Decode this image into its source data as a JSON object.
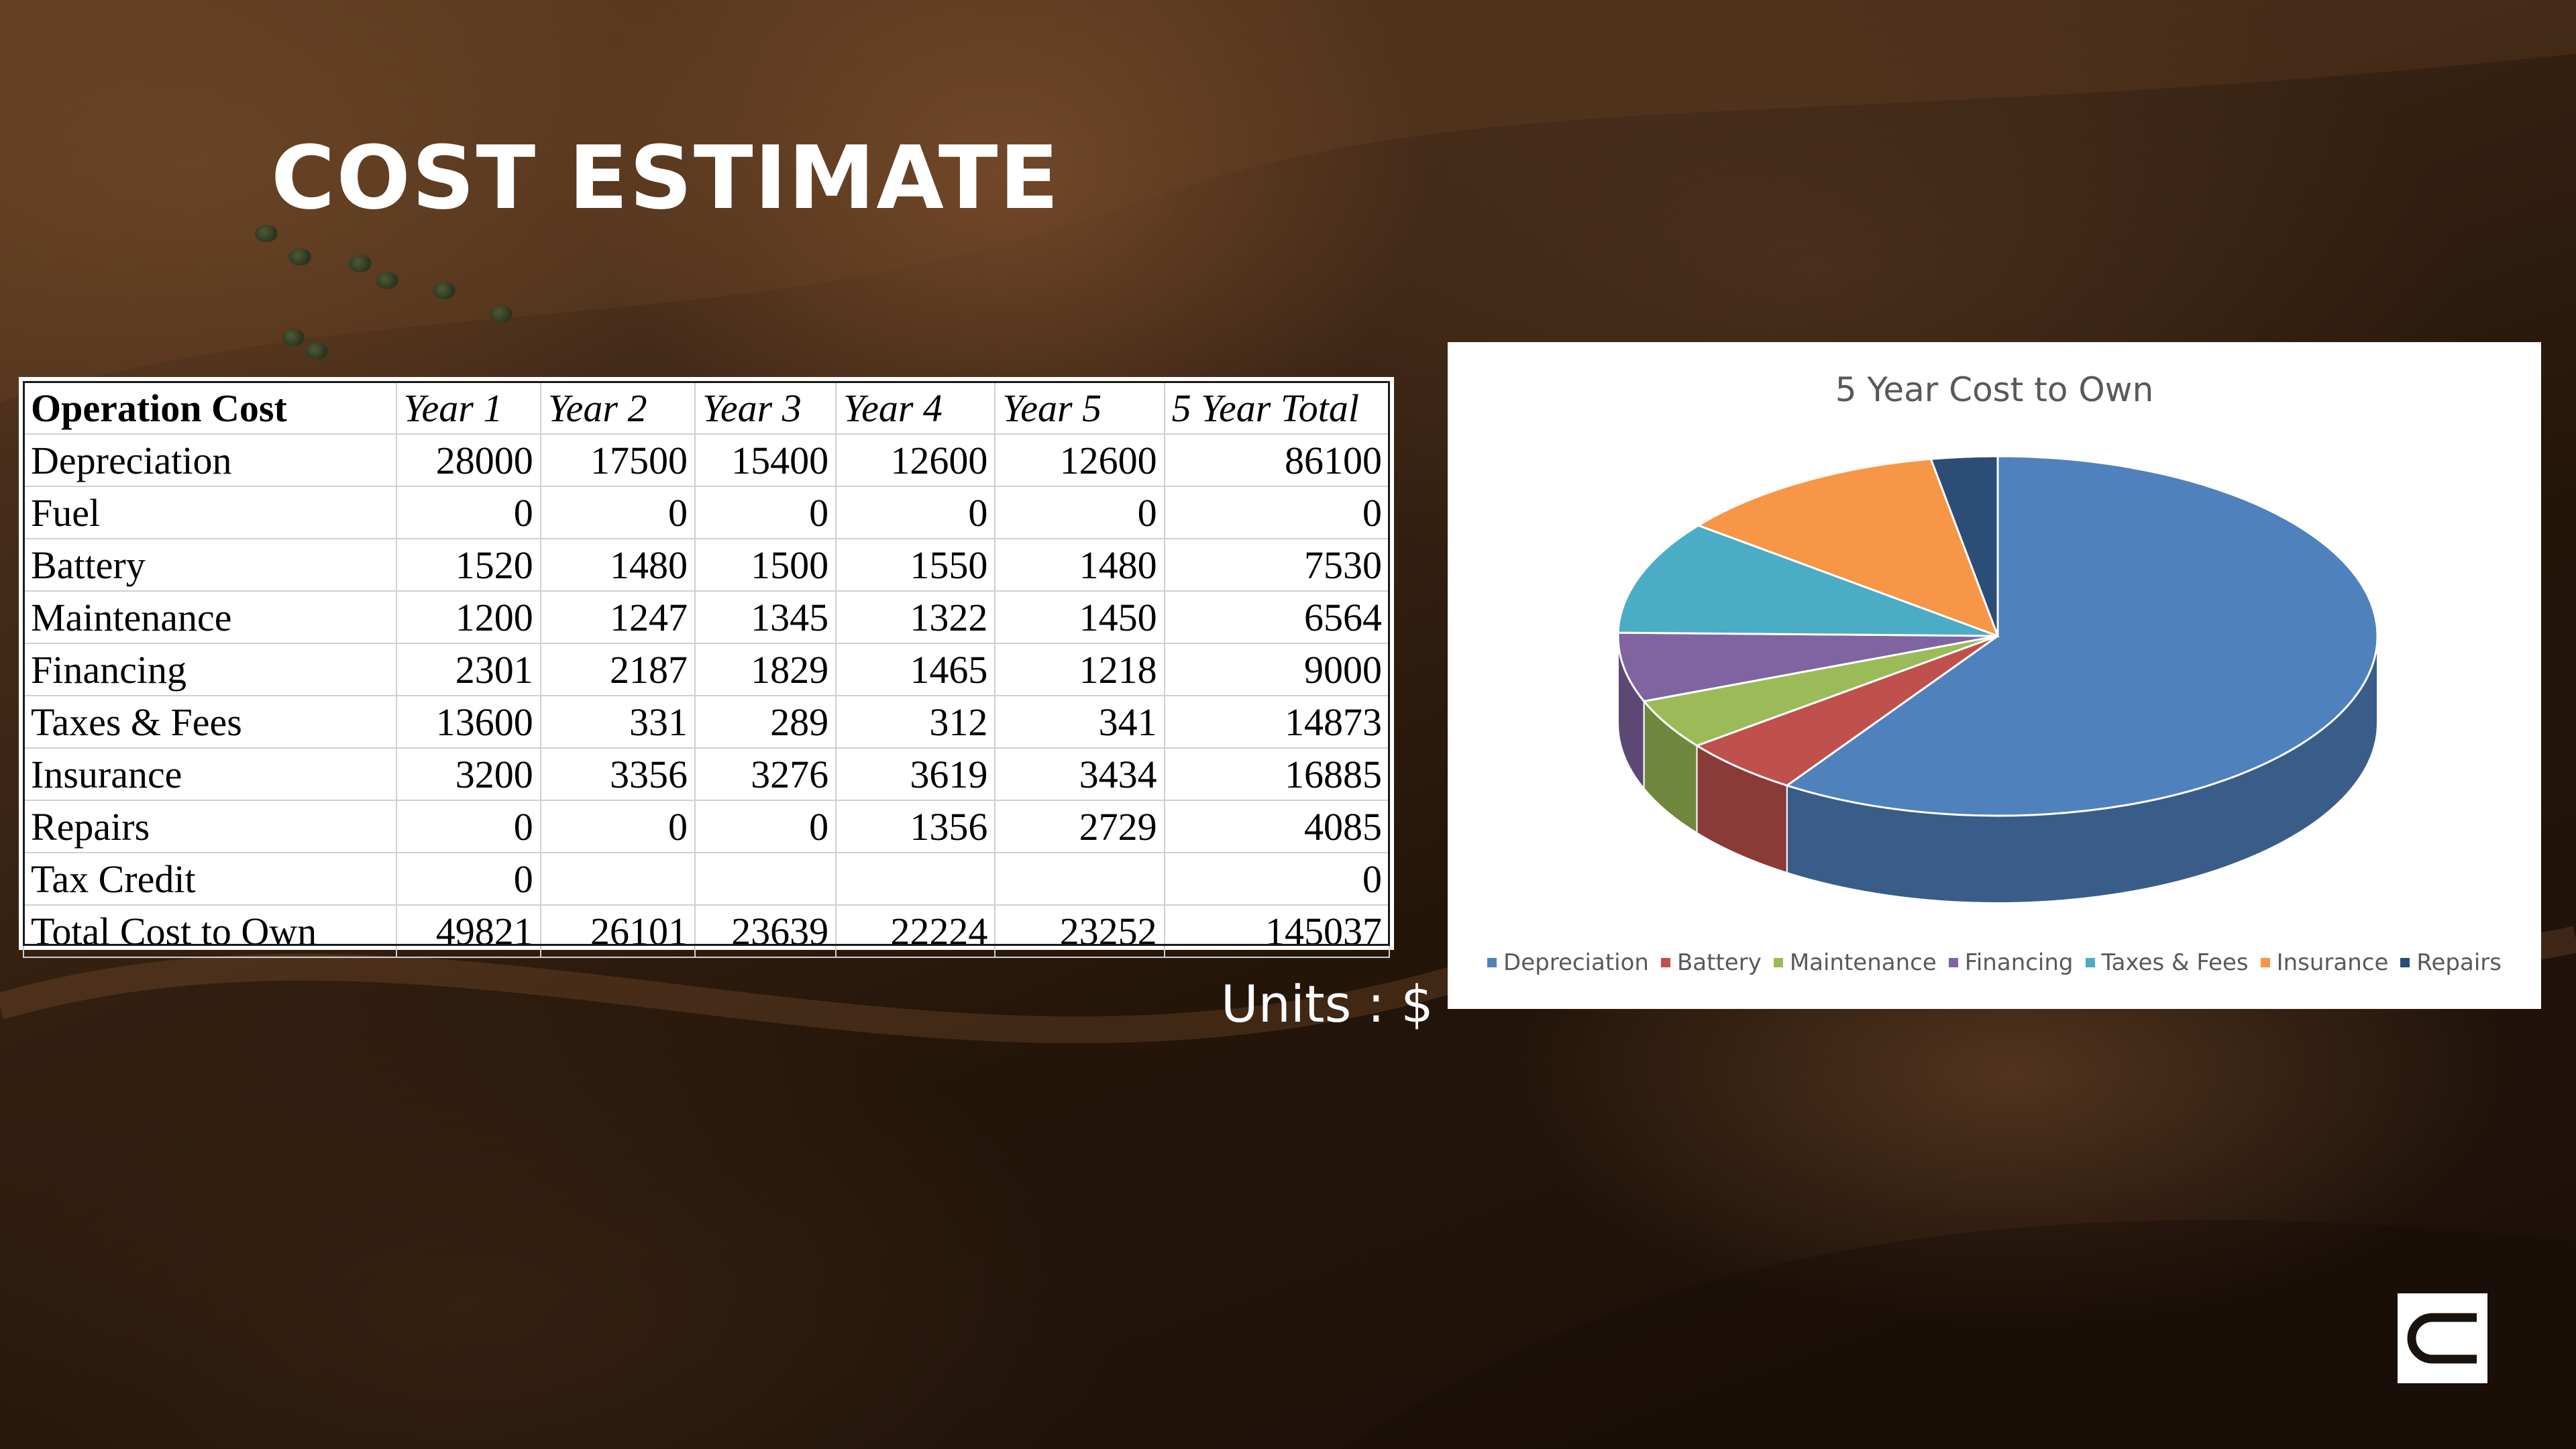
{
  "slide": {
    "title": "COST ESTIMATE",
    "units_note": "Units : $"
  },
  "table": {
    "headers": [
      "Operation Cost",
      "Year 1",
      "Year 2",
      "Year 3",
      "Year 4",
      "Year 5",
      "5 Year Total"
    ],
    "rows": [
      [
        "Depreciation",
        "28000",
        "17500",
        "15400",
        "12600",
        "12600",
        "86100"
      ],
      [
        "Fuel",
        "0",
        "0",
        "0",
        "0",
        "0",
        "0"
      ],
      [
        "Battery",
        "1520",
        "1480",
        "1500",
        "1550",
        "1480",
        "7530"
      ],
      [
        "Maintenance",
        "1200",
        "1247",
        "1345",
        "1322",
        "1450",
        "6564"
      ],
      [
        "Financing",
        "2301",
        "2187",
        "1829",
        "1465",
        "1218",
        "9000"
      ],
      [
        "Taxes & Fees",
        "13600",
        "331",
        "289",
        "312",
        "341",
        "14873"
      ],
      [
        "Insurance",
        "3200",
        "3356",
        "3276",
        "3619",
        "3434",
        "16885"
      ],
      [
        "Repairs",
        "0",
        "0",
        "0",
        "1356",
        "2729",
        "4085"
      ],
      [
        "Tax Credit",
        "0",
        "",
        "",
        "",
        "",
        "0"
      ],
      [
        "Total Cost to Own",
        "49821",
        "26101",
        "23639",
        "22224",
        "23252",
        "145037"
      ]
    ]
  },
  "chart_data": {
    "type": "pie",
    "title": "5 Year Cost to Own",
    "categories": [
      "Depreciation",
      "Battery",
      "Maintenance",
      "Financing",
      "Taxes & Fees",
      "Insurance",
      "Repairs"
    ],
    "values": [
      86100,
      7530,
      6564,
      9000,
      14873,
      16885,
      4085
    ],
    "colors": [
      "#4f81bd",
      "#c0504d",
      "#9bbb59",
      "#8064a2",
      "#4bacc6",
      "#f79646",
      "#2c4d75"
    ],
    "style": "3d",
    "legend": "bottom"
  },
  "logo": {
    "icon": "brand-logo-icon"
  }
}
